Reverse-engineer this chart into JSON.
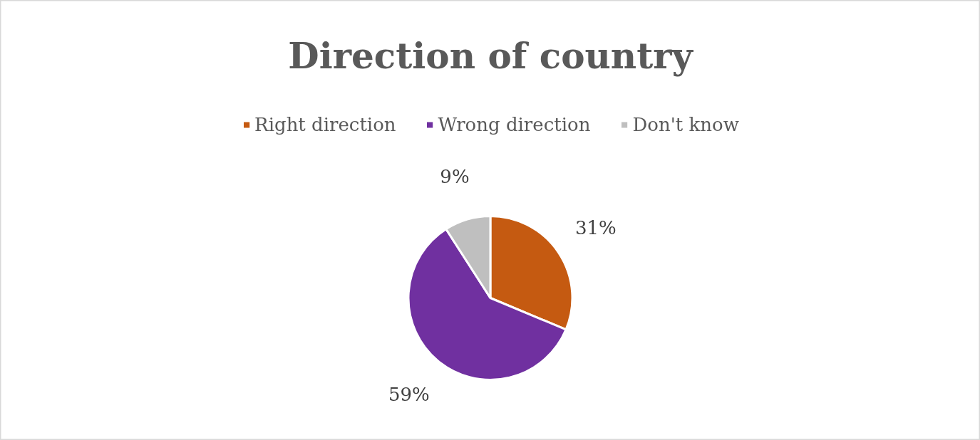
{
  "chart_data": {
    "type": "pie",
    "title": "Direction of country",
    "categories": [
      "Right direction",
      "Wrong direction",
      "Don't know"
    ],
    "values": [
      31,
      59,
      9
    ],
    "colors": [
      "#c55a11",
      "#7030a0",
      "#bfbfbf"
    ],
    "value_labels": [
      "31%",
      "59%",
      "9%"
    ],
    "legend": "top"
  }
}
